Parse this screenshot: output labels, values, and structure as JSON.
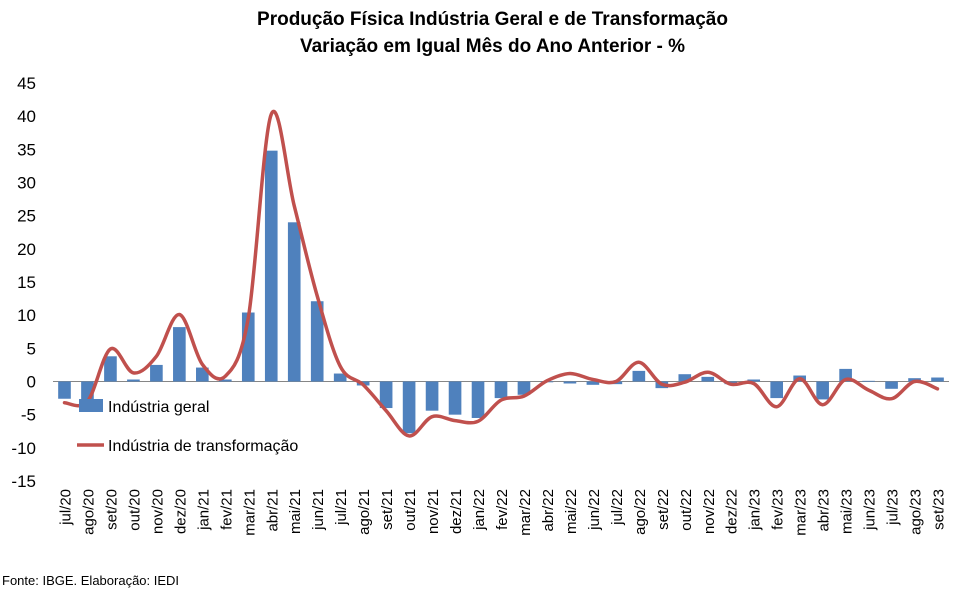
{
  "source_note": "Fonte: IBGE. Elaboração: IEDI",
  "chart_data": {
    "type": "bar",
    "title": "Produção Física Indústria Geral e de Transformação",
    "subtitle": "Variação em Igual Mês do Ano Anterior - %",
    "ylim": [
      -15,
      45
    ],
    "yticks": [
      -15,
      -10,
      -5,
      0,
      5,
      10,
      15,
      20,
      25,
      30,
      35,
      40,
      45
    ],
    "grid": false,
    "legend_position": "lower-left",
    "categories": [
      "jul/20",
      "ago/20",
      "set/20",
      "out/20",
      "nov/20",
      "dez/20",
      "jan/21",
      "fev/21",
      "mar/21",
      "abr/21",
      "mai/21",
      "jun/21",
      "jul/21",
      "ago/21",
      "set/21",
      "out/21",
      "nov/21",
      "dez/21",
      "jan/22",
      "fev/22",
      "mar/22",
      "abr/22",
      "mai/22",
      "jun/22",
      "jul/22",
      "ago/22",
      "set/22",
      "out/22",
      "nov/22",
      "dez/22",
      "jan/23",
      "fev/23",
      "mar/23",
      "abr/23",
      "mai/23",
      "jun/23",
      "jul/23",
      "ago/23",
      "set/23"
    ],
    "series": [
      {
        "name": "Indústria geral",
        "kind": "bar",
        "color": "#4F81BD",
        "values": [
          -2.6,
          -2.7,
          3.8,
          0.3,
          2.5,
          8.2,
          2.1,
          0.3,
          10.4,
          34.8,
          24.0,
          12.1,
          1.2,
          -0.6,
          -4.0,
          -7.8,
          -4.4,
          -5.0,
          -5.5,
          -2.5,
          -2.0,
          0.0,
          -0.3,
          -0.5,
          -0.4,
          1.6,
          -1.0,
          1.1,
          0.7,
          -0.4,
          0.3,
          -2.5,
          0.9,
          -2.7,
          1.9,
          0.1,
          -1.1,
          0.5,
          0.6
        ]
      },
      {
        "name": "Indústria de transformação",
        "kind": "line",
        "color": "#C0504D",
        "values": [
          -3.2,
          -3.0,
          4.9,
          1.3,
          3.8,
          10.1,
          2.6,
          0.8,
          9.6,
          40.3,
          26.5,
          12.9,
          2.3,
          -0.5,
          -4.4,
          -8.2,
          -5.3,
          -5.9,
          -6.0,
          -2.8,
          -2.2,
          0.1,
          1.2,
          0.3,
          0.0,
          2.9,
          -0.4,
          -0.1,
          1.4,
          -0.4,
          -0.3,
          -3.8,
          0.4,
          -3.5,
          0.3,
          -1.3,
          -2.6,
          0.0,
          -1.1
        ]
      }
    ]
  }
}
